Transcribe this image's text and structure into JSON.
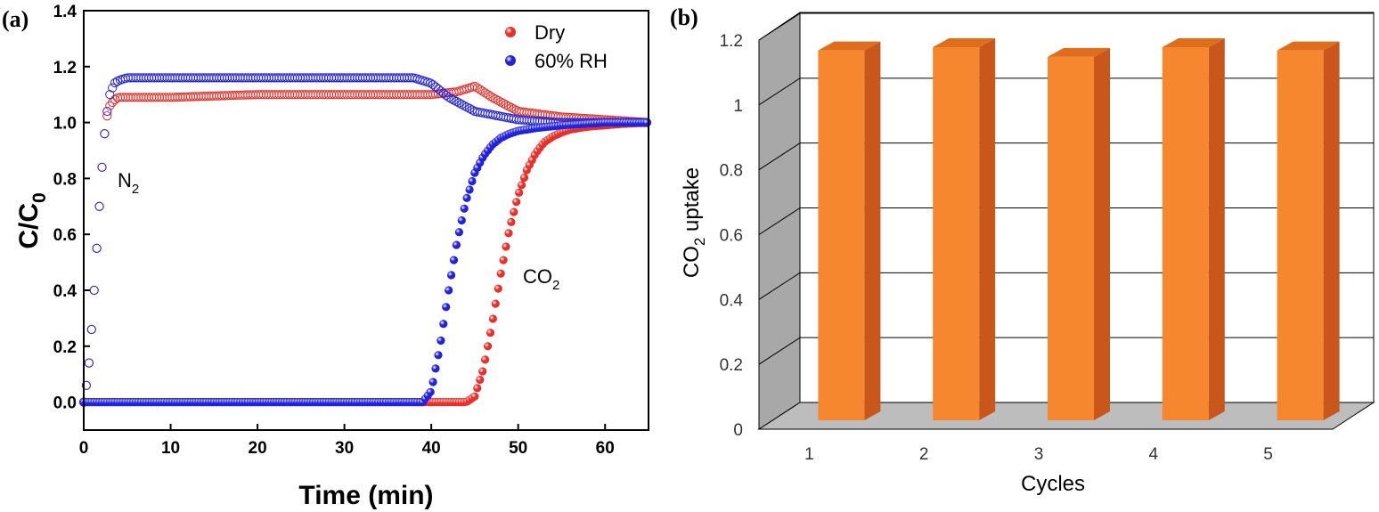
{
  "panel_a": {
    "label": "(a)",
    "xlabel": "Time (min)",
    "ylabel_main": "C/C",
    "ylabel_sub": "0",
    "annotations": {
      "n2_main": "N",
      "n2_sub": "2",
      "co2_main": "CO",
      "co2_sub": "2"
    }
  },
  "panel_b": {
    "label": "(b)",
    "xlabel": "Cycles",
    "ylabel_main": "CO",
    "ylabel_sub": "2",
    "ylabel_rest": " uptake"
  },
  "colors": {
    "dry": "#e8302a",
    "rh": "#2222dd",
    "bar_front": "#f7872e",
    "bar_side": "#c9561a",
    "bar_top": "#e06d1c"
  },
  "chart_data": [
    {
      "type": "scatter",
      "panel": "(a)",
      "xlabel": "Time (min)",
      "ylabel": "C/C0",
      "xlim": [
        0,
        65
      ],
      "ylim": [
        -0.1,
        1.4
      ],
      "xticks": [
        0,
        10,
        20,
        30,
        40,
        50,
        60
      ],
      "yticks": [
        "0.0",
        "0.2",
        "0.4",
        "0.6",
        "0.8",
        "1.0",
        "1.2",
        "1.4"
      ],
      "legend": {
        "position": "top-right",
        "entries": [
          "Dry",
          "60% RH"
        ]
      },
      "series": [
        {
          "name": "Dry",
          "gas": "N2",
          "marker": "open-circle",
          "x": [
            0,
            0.5,
            1,
            1.5,
            2,
            2.5,
            3,
            3.5,
            4,
            5,
            10,
            20,
            30,
            40,
            43,
            45,
            47,
            50,
            55,
            60,
            65
          ],
          "y": [
            0.0,
            0.1,
            0.3,
            0.55,
            0.8,
            1.0,
            1.06,
            1.08,
            1.09,
            1.09,
            1.09,
            1.1,
            1.1,
            1.1,
            1.11,
            1.13,
            1.09,
            1.04,
            1.02,
            1.01,
            1.0
          ]
        },
        {
          "name": "60% RH",
          "gas": "N2",
          "marker": "open-circle",
          "x": [
            0,
            0.5,
            1,
            1.5,
            2,
            2.5,
            3,
            3.5,
            4,
            5,
            10,
            20,
            30,
            38,
            40,
            42,
            45,
            50,
            55,
            60,
            65
          ],
          "y": [
            0.0,
            0.1,
            0.3,
            0.55,
            0.8,
            1.0,
            1.1,
            1.14,
            1.15,
            1.16,
            1.16,
            1.16,
            1.16,
            1.16,
            1.14,
            1.09,
            1.04,
            1.01,
            1.0,
            1.0,
            1.0
          ]
        },
        {
          "name": "Dry",
          "gas": "CO2",
          "marker": "filled-circle",
          "x": [
            0,
            44,
            45,
            46,
            47,
            48,
            49,
            50,
            51,
            52,
            53,
            54,
            55,
            56,
            58,
            60,
            62,
            65
          ],
          "y": [
            0.0,
            0.0,
            0.02,
            0.12,
            0.28,
            0.46,
            0.62,
            0.74,
            0.83,
            0.89,
            0.93,
            0.95,
            0.965,
            0.975,
            0.985,
            0.99,
            0.995,
            1.0
          ]
        },
        {
          "name": "60% RH",
          "gas": "CO2",
          "marker": "filled-circle",
          "x": [
            0,
            39,
            40,
            41,
            42,
            43,
            44,
            45,
            46,
            47,
            48,
            49,
            50,
            52,
            55,
            60,
            65
          ],
          "y": [
            0.0,
            0.0,
            0.04,
            0.2,
            0.4,
            0.58,
            0.72,
            0.82,
            0.88,
            0.92,
            0.945,
            0.96,
            0.97,
            0.98,
            0.99,
            1.0,
            1.0
          ]
        }
      ]
    },
    {
      "type": "bar",
      "panel": "(b)",
      "xlabel": "Cycles",
      "ylabel": "CO2 uptake",
      "categories": [
        "1",
        "2",
        "3",
        "4",
        "5"
      ],
      "values": [
        1.19,
        1.2,
        1.17,
        1.2,
        1.19
      ],
      "ylim": [
        0,
        1.2
      ],
      "yticks": [
        "0",
        "0.2",
        "0.4",
        "0.6",
        "0.8",
        "1",
        "1.2"
      ],
      "grid": true
    }
  ]
}
